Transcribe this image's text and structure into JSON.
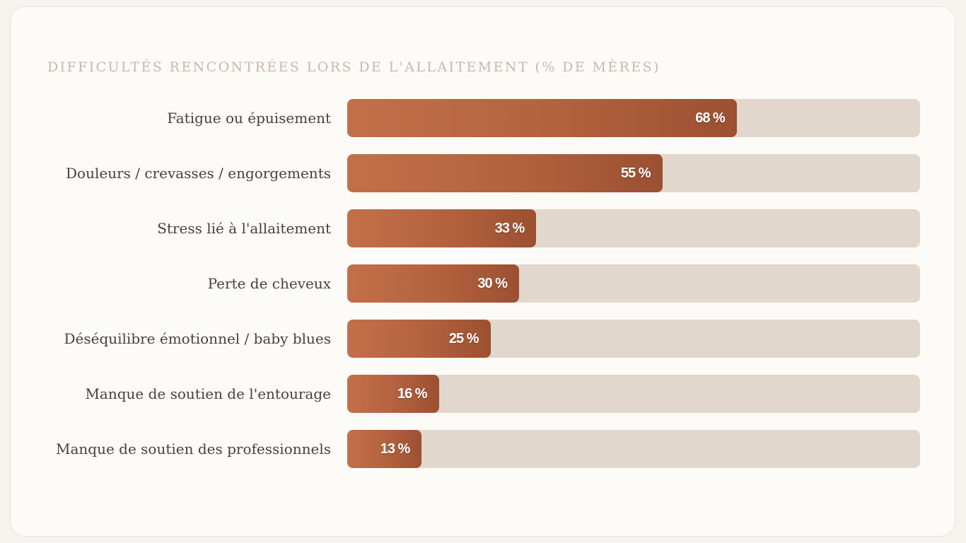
{
  "chart_data": {
    "type": "bar",
    "orientation": "horizontal",
    "title": "DIFFICULTÉS RENCONTRÉES LORS DE L'ALLAITEMENT (% DE MÈRES)",
    "xlabel": "",
    "ylabel": "",
    "xlim": [
      0,
      100
    ],
    "grid": false,
    "categories": [
      "Fatigue ou épuisement",
      "Douleurs / crevasses / engorgements",
      "Stress lié à l'allaitement",
      "Perte de cheveux",
      "Déséquilibre émotionnel / baby blues",
      "Manque de soutien de l'entourage",
      "Manque de soutien des professionnels"
    ],
    "values": [
      68,
      55,
      33,
      30,
      25,
      16,
      13
    ],
    "value_labels": [
      "68 %",
      "55 %",
      "33 %",
      "30 %",
      "25 %",
      "16 %",
      "13 %"
    ],
    "colors": {
      "fill_start": "#c36f4a",
      "fill_end": "#9c5031",
      "track": "#e1d7cc"
    }
  }
}
